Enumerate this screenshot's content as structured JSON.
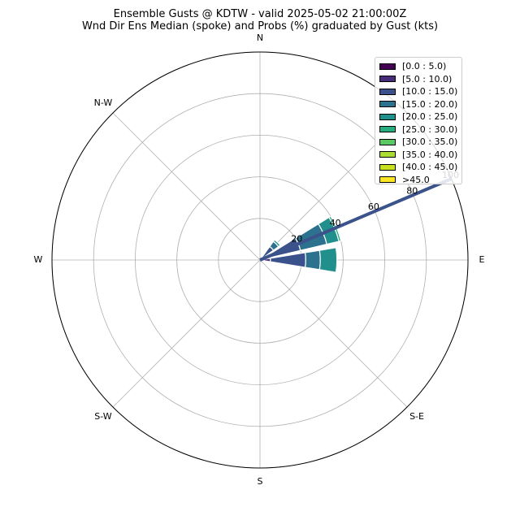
{
  "chart_data": {
    "type": "windrose",
    "title": "Ensemble Gusts @ KDTW - valid 2025-05-02 21:00:00Z",
    "subtitle": "Wnd Dir Ens Median (spoke) and Probs (%) graduated by Gust (kts)",
    "direction_labels": [
      "N",
      "N-W",
      "W",
      "S-W",
      "S",
      "S-E",
      "E"
    ],
    "radial_ticks": [
      "20",
      "40",
      "60",
      "80",
      "100"
    ],
    "radial_max": 100,
    "median_direction_deg": 293,
    "median_color": "#3b528b",
    "bins": [
      {
        "label": "[0.0 : 5.0)",
        "color": "#440154"
      },
      {
        "label": "[5.0 : 10.0)",
        "color": "#472c7a"
      },
      {
        "label": "[10.0 : 15.0)",
        "color": "#3b518b"
      },
      {
        "label": "[15.0 : 20.0)",
        "color": "#2c718e"
      },
      {
        "label": "[20.0 : 25.0)",
        "color": "#21908d"
      },
      {
        "label": "[25.0 : 30.0)",
        "color": "#27ad81"
      },
      {
        "label": "[30.0 : 35.0)",
        "color": "#5cc863"
      },
      {
        "label": "[35.0 : 40.0)",
        "color": "#aadc32"
      },
      {
        "label": "[40.0 : 45.0)",
        "color": "#c8e020"
      },
      {
        "label": ">45.0",
        "color": "#fde725"
      }
    ],
    "directions_deg": [
      270,
      292.5,
      315
    ],
    "values": {
      "270": [
        2,
        3,
        17,
        7,
        8
      ],
      "292.5": [
        0,
        2,
        18,
        13,
        6,
        1
      ],
      "315": [
        0,
        1,
        7,
        3,
        1
      ]
    }
  }
}
